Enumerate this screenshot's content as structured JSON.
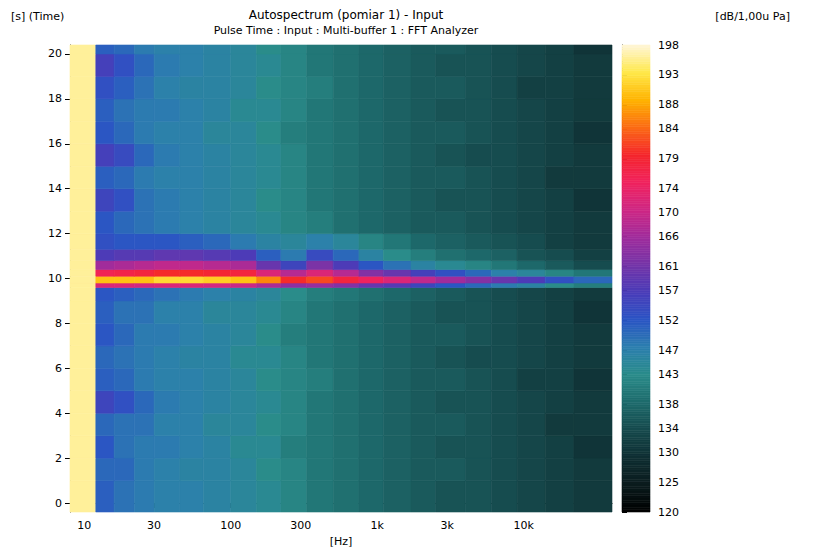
{
  "chart_data": {
    "type": "heatmap",
    "title": "Autospectrum (pomiar 1) - Input",
    "subtitle": "Pulse Time : Input : Multi-buffer 1 : FFT Analyzer",
    "x_label": "[Hz]",
    "y_label": "[s] (Time)",
    "colorbar_label": "[dB/1,00u Pa]",
    "log": "x",
    "grid": false,
    "xlim": [
      8,
      40000
    ],
    "xticks": [
      10,
      30,
      100,
      300,
      {
        "value": 1000,
        "label": "1k"
      },
      {
        "value": 3000,
        "label": "3k"
      },
      {
        "value": 10000,
        "label": "10k"
      }
    ],
    "ylim": [
      -0.4,
      20.4
    ],
    "yticks": [
      0,
      2,
      4,
      6,
      8,
      10,
      12,
      14,
      16,
      18,
      20
    ],
    "x_edges": [
      8,
      12,
      16,
      22,
      30,
      45,
      65,
      100,
      150,
      220,
      330,
      500,
      750,
      1100,
      1700,
      2500,
      4000,
      6000,
      9000,
      14000,
      22000,
      40000
    ],
    "y_edges": [
      -0.4,
      1,
      2,
      3,
      4,
      5,
      6,
      7,
      8,
      9,
      9.6,
      9.8,
      10.1,
      10.4,
      10.8,
      11.3,
      12,
      13,
      14,
      15,
      16,
      17,
      18,
      19,
      20,
      20.4
    ],
    "cells": [
      [
        196,
        151,
        149,
        148,
        147,
        147,
        146,
        145,
        144,
        142,
        140,
        139,
        138,
        137,
        136,
        135,
        135,
        134,
        133,
        132,
        131
      ],
      [
        196,
        150,
        150,
        148,
        147,
        146,
        146,
        145,
        143,
        142,
        140,
        139,
        138,
        137,
        136,
        136,
        135,
        134,
        133,
        132,
        131
      ],
      [
        196,
        152,
        149,
        148,
        148,
        147,
        146,
        144,
        144,
        141,
        140,
        139,
        138,
        137,
        136,
        135,
        135,
        134,
        133,
        132,
        130
      ],
      [
        196,
        150,
        149,
        149,
        147,
        147,
        145,
        145,
        143,
        142,
        140,
        139,
        138,
        137,
        136,
        136,
        135,
        134,
        133,
        131,
        131
      ],
      [
        196,
        155,
        153,
        150,
        148,
        147,
        146,
        145,
        144,
        142,
        140,
        139,
        138,
        137,
        136,
        135,
        135,
        134,
        133,
        132,
        131
      ],
      [
        196,
        151,
        150,
        148,
        147,
        147,
        146,
        145,
        143,
        142,
        141,
        139,
        138,
        137,
        136,
        136,
        135,
        134,
        132,
        132,
        130
      ],
      [
        196,
        150,
        149,
        148,
        147,
        146,
        146,
        144,
        144,
        142,
        140,
        139,
        138,
        137,
        136,
        135,
        134,
        134,
        133,
        132,
        131
      ],
      [
        196,
        152,
        150,
        148,
        148,
        147,
        146,
        145,
        143,
        141,
        140,
        139,
        138,
        137,
        136,
        136,
        135,
        134,
        133,
        132,
        131
      ],
      [
        196,
        151,
        149,
        149,
        147,
        147,
        145,
        145,
        144,
        142,
        140,
        139,
        138,
        137,
        136,
        135,
        135,
        134,
        133,
        132,
        130
      ],
      [
        196,
        152,
        151,
        150,
        149,
        148,
        147,
        146,
        145,
        143,
        141,
        140,
        139,
        138,
        137,
        136,
        135,
        134,
        133,
        132,
        131
      ],
      [
        196,
        172,
        172,
        171,
        172,
        172,
        171,
        170,
        167,
        164,
        165,
        163,
        160,
        158,
        155,
        152,
        150,
        148,
        146,
        143,
        141
      ],
      [
        196,
        190,
        190,
        190,
        192,
        192,
        191,
        190,
        186,
        180,
        182,
        178,
        175,
        172,
        169,
        166,
        163,
        160,
        157,
        153,
        150
      ],
      [
        196,
        176,
        177,
        178,
        180,
        180,
        179,
        178,
        172,
        168,
        172,
        168,
        163,
        160,
        156,
        153,
        150,
        147,
        145,
        142,
        140
      ],
      [
        196,
        166,
        167,
        168,
        169,
        169,
        168,
        167,
        160,
        155,
        162,
        157,
        152,
        149,
        146,
        144,
        142,
        140,
        138,
        136,
        134
      ],
      [
        196,
        157,
        158,
        158,
        159,
        159,
        158,
        157,
        151,
        148,
        154,
        150,
        146,
        143,
        141,
        139,
        138,
        137,
        135,
        134,
        132
      ],
      [
        196,
        153,
        152,
        152,
        152,
        151,
        150,
        148,
        146,
        145,
        147,
        145,
        142,
        140,
        138,
        137,
        136,
        135,
        134,
        132,
        131
      ],
      [
        196,
        152,
        150,
        149,
        148,
        147,
        146,
        145,
        144,
        142,
        141,
        139,
        138,
        137,
        136,
        136,
        135,
        134,
        133,
        132,
        131
      ],
      [
        196,
        155,
        153,
        149,
        148,
        147,
        146,
        145,
        143,
        142,
        140,
        139,
        138,
        137,
        136,
        135,
        135,
        134,
        133,
        132,
        130
      ],
      [
        196,
        151,
        150,
        148,
        147,
        147,
        146,
        145,
        144,
        142,
        140,
        139,
        138,
        137,
        136,
        136,
        135,
        134,
        133,
        131,
        131
      ],
      [
        196,
        156,
        154,
        150,
        148,
        147,
        146,
        145,
        144,
        142,
        140,
        139,
        138,
        137,
        136,
        135,
        134,
        134,
        133,
        132,
        131
      ],
      [
        196,
        152,
        150,
        148,
        147,
        147,
        145,
        145,
        143,
        141,
        140,
        139,
        138,
        137,
        136,
        136,
        135,
        134,
        133,
        132,
        130
      ],
      [
        196,
        151,
        149,
        148,
        148,
        147,
        146,
        144,
        144,
        142,
        140,
        139,
        138,
        137,
        136,
        135,
        135,
        134,
        133,
        132,
        131
      ],
      [
        196,
        153,
        151,
        149,
        147,
        146,
        146,
        145,
        143,
        142,
        141,
        139,
        138,
        137,
        136,
        136,
        135,
        134,
        132,
        132,
        131
      ],
      [
        196,
        156,
        153,
        150,
        148,
        147,
        146,
        145,
        144,
        142,
        140,
        139,
        138,
        137,
        136,
        135,
        135,
        134,
        133,
        132,
        131
      ],
      [
        196,
        151,
        150,
        148,
        147,
        147,
        146,
        145,
        143,
        142,
        140,
        139,
        138,
        137,
        136,
        136,
        135,
        134,
        133,
        132,
        130
      ]
    ],
    "colorbar_range": [
      120,
      198
    ],
    "colorbar_ticks": [
      198,
      193,
      188,
      184,
      179,
      174,
      170,
      166,
      161,
      157,
      152,
      147,
      143,
      138,
      134,
      130,
      125,
      120
    ]
  }
}
